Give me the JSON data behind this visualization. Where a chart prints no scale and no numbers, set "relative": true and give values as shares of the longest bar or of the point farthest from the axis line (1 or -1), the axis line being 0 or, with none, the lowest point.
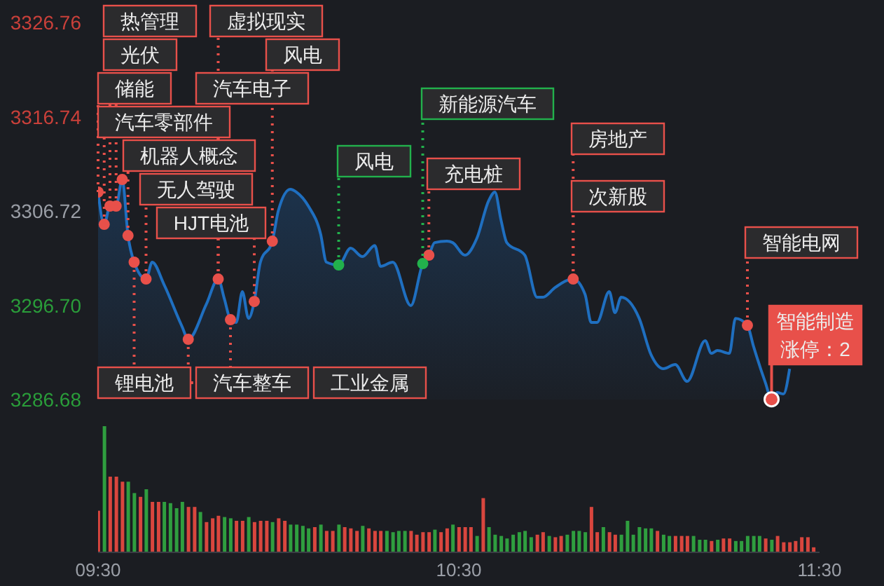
{
  "chart_data": [
    {
      "type": "area",
      "x": [
        9.5,
        9.517,
        9.533,
        9.55,
        9.567,
        9.583,
        9.6,
        9.633,
        9.65,
        9.683,
        9.733,
        9.75,
        9.8,
        9.833,
        9.85,
        9.867,
        9.883,
        9.9,
        9.917,
        9.933,
        9.95,
        9.983,
        10,
        10.033,
        10.05,
        10.083,
        10.117,
        10.133,
        10.167,
        10.2,
        10.233,
        10.267,
        10.283,
        10.317,
        10.367,
        10.4,
        10.417,
        10.433,
        10.467,
        10.483,
        10.517,
        10.55,
        10.583,
        10.6,
        10.617,
        10.633,
        10.683,
        10.717,
        10.733,
        10.767,
        10.817,
        10.85,
        10.867,
        10.883,
        10.917,
        10.933,
        10.95,
        11,
        11.033,
        11.067,
        11.1,
        11.133,
        11.183,
        11.2,
        11.217,
        11.25,
        11.267,
        11.3,
        11.317,
        11.35,
        11.367,
        11.383,
        11.4,
        11.417
      ],
      "series": [
        {
          "type": "area",
          "color": "#1f6fc0",
          "values": [
            3308.73,
            3305.3,
            3307.24,
            3307.24,
            3310.07,
            3304.11,
            3301.28,
            3299.49,
            3301.28,
            3298.89,
            3294.42,
            3293.08,
            3296.8,
            3299.49,
            3297.4,
            3295.17,
            3294.87,
            3298.15,
            3295.31,
            3297.1,
            3301.28,
            3303.51,
            3306.79,
            3309.03,
            3308.73,
            3307.24,
            3304.26,
            3301.28,
            3300.98,
            3302.77,
            3301.87,
            3303.06,
            3300.83,
            3301.28,
            3296.66,
            3301.13,
            3302.02,
            3303.36,
            3303.51,
            3303.36,
            3302.02,
            3303.81,
            3307.83,
            3308.73,
            3305.75,
            3303.36,
            3302.02,
            3297.55,
            3297.55,
            3298.59,
            3299.49,
            3297.85,
            3294.87,
            3294.87,
            3298.15,
            3295.91,
            3297.55,
            3295.31,
            3291.44,
            3289.95,
            3290.4,
            3288.61,
            3292.93,
            3291.59,
            3291.89,
            3291.59,
            3295.31,
            3294.57,
            3292.33,
            3288.46,
            3286.7,
            3287.42,
            3287.27,
            3289.95
          ]
        },
        {
          "type": "scatter",
          "color": "#e8504a",
          "x": [
            9.5,
            9.517,
            9.533,
            9.55,
            9.567,
            9.583,
            9.6,
            9.633,
            9.75,
            9.833,
            9.867,
            9.933,
            9.983,
            10.417,
            10.817,
            11.3,
            11.367
          ],
          "values": [
            3308.73,
            3305.3,
            3307.24,
            3307.24,
            3310.07,
            3304.11,
            3301.28,
            3299.49,
            3293.08,
            3299.49,
            3295.17,
            3297.1,
            3303.51,
            3302.02,
            3299.49,
            3294.57,
            3286.7
          ]
        },
        {
          "type": "scatter",
          "color": "#22b14c",
          "x": [
            10.167,
            10.4
          ],
          "values": [
            3300.98,
            3301.13
          ]
        }
      ],
      "xlim": [
        9.5,
        11.5
      ],
      "ylim": [
        3286.68,
        3326.76
      ],
      "yticks": [
        3286.68,
        {
          "value": 3296.7,
          "label": "3296.70"
        },
        3306.72,
        3316.74,
        3326.76
      ],
      "tick_labels": "y",
      "annotations": [
        {
          "text": "储能",
          "x": 9.5,
          "y": 3308.73
        },
        {
          "text": "汽车零部件",
          "x": 9.517,
          "y": 3305.3
        },
        {
          "text": "光伏",
          "x": 9.533,
          "y": 3307.24
        },
        {
          "text": "热管理",
          "x": 9.55,
          "y": 3307.24
        },
        {
          "text": "机器人概念",
          "x": 9.583,
          "y": 3304.11
        },
        {
          "text": "锂电池",
          "x": 9.6,
          "y": 3301.28
        },
        {
          "text": "无人驾驶",
          "x": 9.633,
          "y": 3299.49
        },
        {
          "text": "汽车整车",
          "x": 9.75,
          "y": 3293.08
        },
        {
          "text": "汽车电子",
          "x": 9.833,
          "y": 3299.49
        },
        {
          "text": "虚拟现实",
          "x": 9.833,
          "y": 3299.49
        },
        {
          "text": "工业金属",
          "x": 9.867,
          "y": 3295.17
        },
        {
          "text": "HJT电池",
          "x": 9.933,
          "y": 3297.1
        },
        {
          "text": "风电",
          "x": 9.983,
          "y": 3303.51
        },
        {
          "text": "风电",
          "x": 10.167,
          "y": 3300.98
        },
        {
          "text": "新能源汽车",
          "x": 10.4,
          "y": 3301.13
        },
        {
          "text": "充电桩",
          "x": 10.417,
          "y": 3302.02
        },
        {
          "text": "房地产",
          "x": 10.817,
          "y": 3299.49
        },
        {
          "text": "次新股",
          "x": 10.817,
          "y": 3299.49
        },
        {
          "text": "智能电网",
          "x": 11.3,
          "y": 3294.57
        },
        "智能制造",
        {
          "text": "涨停：2",
          "x": 11.367,
          "y": 3286.7
        }
      ]
    },
    {
      "type": "bar",
      "relative": true,
      "x": [
        9.5,
        9.517,
        9.533,
        9.55,
        9.567,
        9.583,
        9.6,
        9.617,
        9.633,
        9.65,
        9.667,
        9.683,
        9.7,
        9.717,
        9.733,
        9.75,
        9.767,
        9.783,
        9.8,
        9.817,
        9.833,
        9.85,
        9.867,
        9.883,
        9.9,
        9.917,
        9.933,
        9.95,
        9.967,
        9.983,
        10,
        10.017,
        10.033,
        10.05,
        10.067,
        10.083,
        10.1,
        10.117,
        10.133,
        10.15,
        10.167,
        10.183,
        10.2,
        10.217,
        10.233,
        10.25,
        10.267,
        10.283,
        10.3,
        10.317,
        10.333,
        10.35,
        10.367,
        10.383,
        10.4,
        10.417,
        10.433,
        10.45,
        10.467,
        10.483,
        10.5,
        10.517,
        10.533,
        10.55,
        10.567,
        10.583,
        10.6,
        10.617,
        10.633,
        10.65,
        10.667,
        10.683,
        10.7,
        10.717,
        10.733,
        10.75,
        10.767,
        10.783,
        10.8,
        10.817,
        10.833,
        10.85,
        10.867,
        10.883,
        10.9,
        10.917,
        10.933,
        10.95,
        10.967,
        10.983,
        11,
        11.017,
        11.033,
        11.05,
        11.067,
        11.083,
        11.1,
        11.117,
        11.133,
        11.15,
        11.167,
        11.183,
        11.2,
        11.217,
        11.233,
        11.25,
        11.267,
        11.283,
        11.3,
        11.317,
        11.333,
        11.35,
        11.367,
        11.383,
        11.4,
        11.417,
        11.433,
        11.45,
        11.467,
        11.483
      ],
      "values": [
        0.33,
        1,
        0.6,
        0.6,
        0.56,
        0.56,
        0.47,
        0.44,
        0.5,
        0.4,
        0.4,
        0.4,
        0.39,
        0.35,
        0.4,
        0.36,
        0.36,
        0.32,
        0.24,
        0.27,
        0.29,
        0.28,
        0.27,
        0.25,
        0.25,
        0.28,
        0.24,
        0.25,
        0.25,
        0.24,
        0.27,
        0.25,
        0.22,
        0.22,
        0.21,
        0.19,
        0.2,
        0.22,
        0.17,
        0.17,
        0.22,
        0.2,
        0.19,
        0.17,
        0.21,
        0.19,
        0.17,
        0.17,
        0.17,
        0.16,
        0.17,
        0.17,
        0.17,
        0.14,
        0.16,
        0.16,
        0.18,
        0.16,
        0.19,
        0.22,
        0.2,
        0.2,
        0.2,
        0.13,
        0.43,
        0.2,
        0.14,
        0.13,
        0.11,
        0.14,
        0.16,
        0.17,
        0.12,
        0.14,
        0.16,
        0.13,
        0.12,
        0.13,
        0.14,
        0.17,
        0.17,
        0.16,
        0.36,
        0.16,
        0.2,
        0.16,
        0.14,
        0.14,
        0.25,
        0.14,
        0.2,
        0.19,
        0.19,
        0.17,
        0.14,
        0.13,
        0.13,
        0.13,
        0.13,
        0.13,
        0.1,
        0.1,
        0.09,
        0.1,
        0.11,
        0.11,
        0.09,
        0.09,
        0.13,
        0.13,
        0.13,
        0.11,
        0.1,
        0.13,
        0.08,
        0.08,
        0.09,
        0.12,
        0.12,
        0.04
      ],
      "colors": [
        "#d9463e",
        "#2f9e3f",
        "#d9463e",
        "#d9463e",
        "#d9463e",
        "#2f9e3f",
        "#2f9e3f",
        "#d9463e",
        "#2f9e3f",
        "#d9463e",
        "#d9463e",
        "#2f9e3f",
        "#2f9e3f",
        "#2f9e3f",
        "#2f9e3f",
        "#d9463e",
        "#d9463e",
        "#2f9e3f",
        "#d9463e",
        "#d9463e",
        "#d9463e",
        "#2f9e3f",
        "#2f9e3f",
        "#d9463e",
        "#d9463e",
        "#2f9e3f",
        "#d9463e",
        "#d9463e",
        "#d9463e",
        "#2f9e3f",
        "#d9463e",
        "#d9463e",
        "#2f9e3f",
        "#2f9e3f",
        "#2f9e3f",
        "#2f9e3f",
        "#d9463e",
        "#2f9e3f",
        "#d9463e",
        "#d9463e",
        "#2f9e3f",
        "#d9463e",
        "#d9463e",
        "#d9463e",
        "#2f9e3f",
        "#d9463e",
        "#d9463e",
        "#d9463e",
        "#2f9e3f",
        "#2f9e3f",
        "#2f9e3f",
        "#2f9e3f",
        "#d9463e",
        "#d9463e",
        "#d9463e",
        "#d9463e",
        "#2f9e3f",
        "#d9463e",
        "#d9463e",
        "#2f9e3f",
        "#d9463e",
        "#d9463e",
        "#d9463e",
        "#2f9e3f",
        "#d9463e",
        "#2f9e3f",
        "#2f9e3f",
        "#2f9e3f",
        "#2f9e3f",
        "#2f9e3f",
        "#2f9e3f",
        "#2f9e3f",
        "#2f9e3f",
        "#d9463e",
        "#d9463e",
        "#2f9e3f",
        "#d9463e",
        "#d9463e",
        "#2f9e3f",
        "#2f9e3f",
        "#2f9e3f",
        "#2f9e3f",
        "#d9463e",
        "#d9463e",
        "#2f9e3f",
        "#d9463e",
        "#d9463e",
        "#2f9e3f",
        "#2f9e3f",
        "#2f9e3f",
        "#2f9e3f",
        "#2f9e3f",
        "#2f9e3f",
        "#d9463e",
        "#2f9e3f",
        "#2f9e3f",
        "#d9463e",
        "#d9463e",
        "#d9463e",
        "#2f9e3f",
        "#2f9e3f",
        "#2f9e3f",
        "#d9463e",
        "#2f9e3f",
        "#d9463e",
        "#d9463e",
        "#2f9e3f",
        "#2f9e3f",
        "#2f9e3f",
        "#2f9e3f",
        "#2f9e3f",
        "#d9463e",
        "#2f9e3f",
        "#d9463e",
        "#d9463e",
        "#d9463e",
        "#d9463e",
        "#d9463e",
        "#d9463e",
        "#d9463e"
      ],
      "xlim": [
        9.5,
        11.5
      ],
      "xticks": [
        {
          "value": 9.5,
          "label": "09:30"
        },
        {
          "value": 10.5,
          "label": "10:30"
        },
        {
          "value": 11.5,
          "label": "11:30"
        }
      ],
      "tick_labels": "x"
    }
  ]
}
